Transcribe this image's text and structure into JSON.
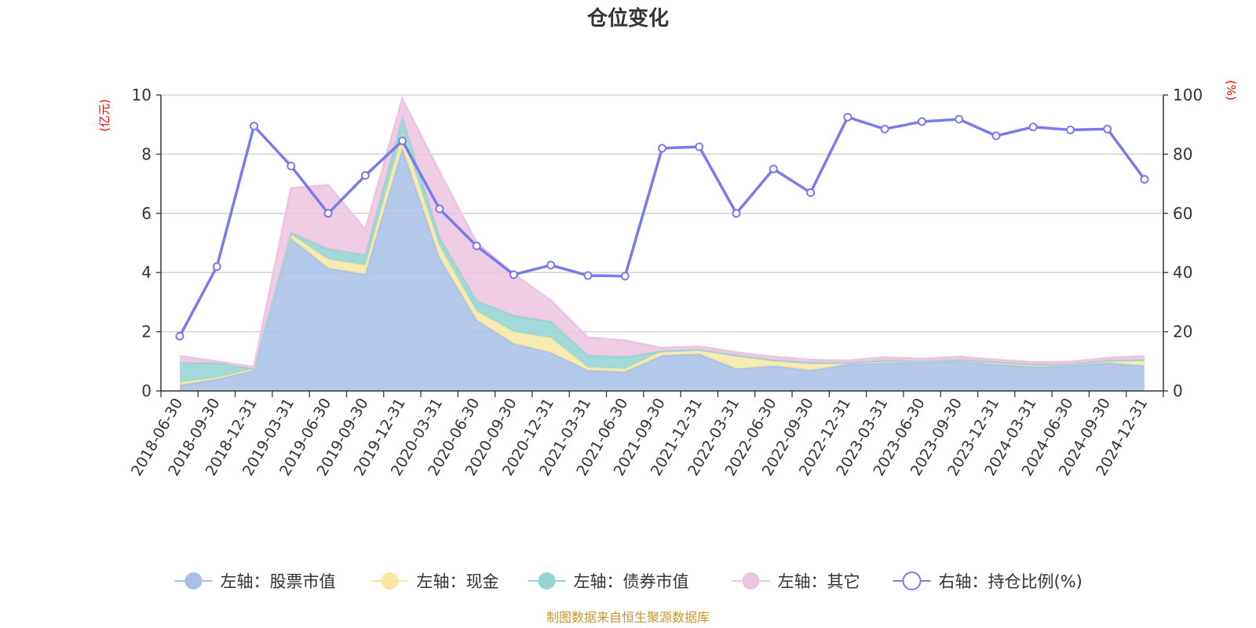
{
  "chart_data": {
    "type": "area",
    "title": "仓位变化",
    "left_axis_unit": "(亿元)",
    "right_axis_unit": "(%)",
    "ylim_left": [
      0,
      10
    ],
    "ylim_right": [
      0,
      100
    ],
    "yticks_left": [
      "0",
      "2",
      "4",
      "6",
      "8",
      "10"
    ],
    "yticks_right": [
      "0",
      "20",
      "40",
      "60",
      "80",
      "100"
    ],
    "x": [
      "2018-06-30",
      "2018-09-30",
      "2018-12-31",
      "2019-03-31",
      "2019-06-30",
      "2019-09-30",
      "2019-12-31",
      "2020-03-31",
      "2020-06-30",
      "2020-09-30",
      "2020-12-31",
      "2021-03-31",
      "2021-06-30",
      "2021-09-30",
      "2021-12-31",
      "2022-03-31",
      "2022-06-30",
      "2022-09-30",
      "2022-12-31",
      "2023-03-31",
      "2023-06-30",
      "2023-09-30",
      "2023-12-31",
      "2024-03-31",
      "2024-06-30",
      "2024-09-30",
      "2024-12-31"
    ],
    "series": [
      {
        "name": "左轴：股票市值",
        "axis": "left",
        "stack": true,
        "color": "#a8c0e6",
        "values": [
          0.2,
          0.4,
          0.7,
          5.15,
          4.15,
          3.95,
          8.2,
          4.5,
          2.4,
          1.6,
          1.3,
          0.7,
          0.65,
          1.2,
          1.25,
          0.75,
          0.85,
          0.7,
          0.9,
          0.95,
          0.95,
          1.0,
          0.9,
          0.82,
          0.85,
          0.95,
          0.85
        ]
      },
      {
        "name": "左轴：现金",
        "axis": "left",
        "stack": true,
        "color": "#f7e7a3",
        "values": [
          0.1,
          0.05,
          0.05,
          0.15,
          0.3,
          0.3,
          0.5,
          0.4,
          0.3,
          0.4,
          0.5,
          0.1,
          0.1,
          0.15,
          0.15,
          0.45,
          0.15,
          0.25,
          0.05,
          0.08,
          0.05,
          0.05,
          0.08,
          0.08,
          0.05,
          0.08,
          0.2
        ]
      },
      {
        "name": "左轴：债券市值",
        "axis": "left",
        "stack": true,
        "color": "#93d3d4",
        "values": [
          0.65,
          0.5,
          0.0,
          0.05,
          0.35,
          0.35,
          0.55,
          0.3,
          0.35,
          0.55,
          0.55,
          0.4,
          0.4,
          0.0,
          0.0,
          0.0,
          0.05,
          0.0,
          0.0,
          0.0,
          0.0,
          0.0,
          0.0,
          0.0,
          0.0,
          0.0,
          0.0
        ]
      },
      {
        "name": "左轴：其它",
        "axis": "left",
        "stack": true,
        "color": "#ecc6e0",
        "values": [
          0.22,
          0.05,
          0.05,
          1.5,
          2.15,
          0.85,
          0.6,
          2.2,
          1.95,
          1.4,
          0.7,
          0.6,
          0.55,
          0.1,
          0.1,
          0.1,
          0.1,
          0.1,
          0.07,
          0.1,
          0.08,
          0.1,
          0.07,
          0.07,
          0.08,
          0.08,
          0.12
        ]
      },
      {
        "name": "右轴：持仓比例(%)",
        "axis": "right",
        "type": "line",
        "color": "#7a7aee",
        "values": [
          18.5,
          42,
          89.5,
          76,
          60,
          72.8,
          84.5,
          61.5,
          49,
          39.3,
          42.5,
          39,
          38.8,
          82,
          82.5,
          60,
          75,
          67,
          92.5,
          88.5,
          91,
          91.8,
          86.2,
          89.2,
          88.2,
          88.5,
          71.5
        ]
      }
    ],
    "legend_position": "bottom-center",
    "grid": true
  },
  "source_note": "制图数据来自恒生聚源数据库"
}
